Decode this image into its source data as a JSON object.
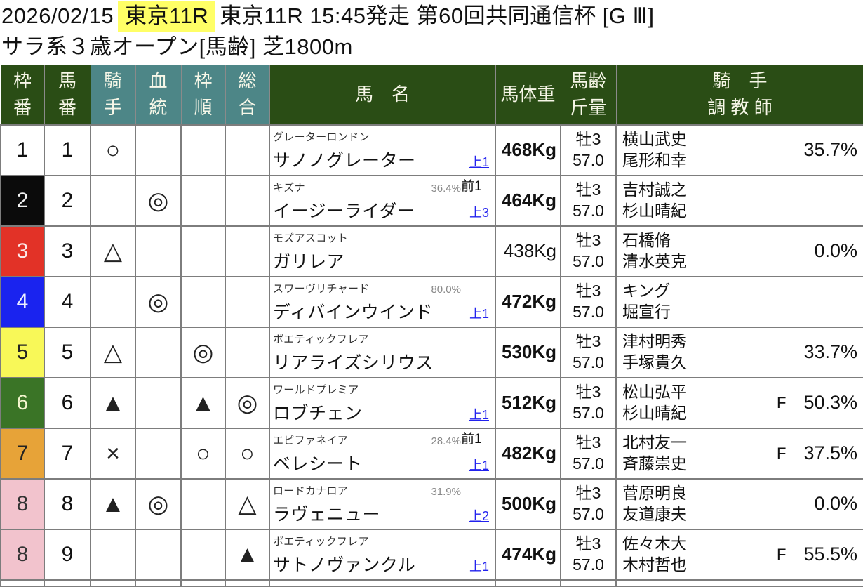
{
  "header": {
    "date": "2026/02/15",
    "track_highlight": "東京11R",
    "race_info": "東京11R 15:45発走 第60回共同通信杯 [G Ⅲ]",
    "conditions": "サラ系３歳オープン[馬齢] 芝1800m",
    "highlight_color": "#ffff66"
  },
  "colors": {
    "header_green": "#2a4d15",
    "header_teal": "#4d8687",
    "link_blue": "#2222ee",
    "border_gray": "#7d7d7d",
    "frame_colors": {
      "1": "#ffffff",
      "2": "#0b0b0b",
      "3": "#e23227",
      "4": "#1a23ef",
      "5": "#f8f858",
      "6": "#3a7426",
      "7": "#e7a338",
      "8": "#f2c3cd"
    }
  },
  "table": {
    "headers": {
      "waku": {
        "l1": "枠",
        "l2": "番"
      },
      "uma": {
        "l1": "馬",
        "l2": "番"
      },
      "kishu": {
        "l1": "騎",
        "l2": "手"
      },
      "ketto": {
        "l1": "血",
        "l2": "統"
      },
      "wakujun": {
        "l1": "枠",
        "l2": "順"
      },
      "sogo": {
        "l1": "総",
        "l2": "合"
      },
      "bamei": "馬　名",
      "bataiju": "馬体重",
      "barei": {
        "l1": "馬齢",
        "l2": "斤量"
      },
      "kishu_chokyoshi": {
        "l1": "騎　手",
        "l2": "調 教 師"
      }
    }
  },
  "rows": [
    {
      "frame": "1",
      "number": "1",
      "marks": {
        "jockey": "○",
        "blood": "",
        "draw": "",
        "overall": ""
      },
      "sire": "グレーターロンドン",
      "top_pct": "",
      "top_label": "",
      "name": "サノノグレーター",
      "agari": "上1",
      "weight": "468Kg",
      "sex_age": "牡3",
      "load": "57.0",
      "jockey": "横山武史",
      "trainer": "尾形和幸",
      "f": "",
      "pct": "35.7%"
    },
    {
      "frame": "2",
      "number": "2",
      "marks": {
        "jockey": "",
        "blood": "◎",
        "draw": "",
        "overall": ""
      },
      "sire": "キズナ",
      "top_pct": "36.4%",
      "top_label": "前1",
      "name": "イージーライダー",
      "agari": "上3",
      "weight": "464Kg",
      "sex_age": "牡3",
      "load": "57.0",
      "jockey": "吉村誠之",
      "trainer": "杉山晴紀",
      "f": "",
      "pct": ""
    },
    {
      "frame": "3",
      "number": "3",
      "marks": {
        "jockey": "△",
        "blood": "",
        "draw": "",
        "overall": ""
      },
      "sire": "モズアスコット",
      "top_pct": "",
      "top_label": "",
      "name": "ガリレア",
      "agari": "",
      "weight": "438Kg",
      "sex_age": "牡3",
      "load": "57.0",
      "jockey": "石橋脩",
      "trainer": "清水英克",
      "f": "",
      "pct": "0.0%"
    },
    {
      "frame": "4",
      "number": "4",
      "marks": {
        "jockey": "",
        "blood": "◎",
        "draw": "",
        "overall": ""
      },
      "sire": "スワーヴリチャード",
      "top_pct": "80.0%",
      "top_label": "",
      "name": "ディバインウインド",
      "agari": "上1",
      "weight": "472Kg",
      "sex_age": "牡3",
      "load": "57.0",
      "jockey": "キング",
      "trainer": "堀宣行",
      "f": "",
      "pct": ""
    },
    {
      "frame": "5",
      "number": "5",
      "marks": {
        "jockey": "△",
        "blood": "",
        "draw": "◎",
        "overall": ""
      },
      "sire": "ポエティックフレア",
      "top_pct": "",
      "top_label": "",
      "name": "リアライズシリウス",
      "agari": "",
      "weight": "530Kg",
      "sex_age": "牡3",
      "load": "57.0",
      "jockey": "津村明秀",
      "trainer": "手塚貴久",
      "f": "",
      "pct": "33.7%"
    },
    {
      "frame": "6",
      "number": "6",
      "marks": {
        "jockey": "▲",
        "blood": "",
        "draw": "▲",
        "overall": "◎"
      },
      "sire": "ワールドプレミア",
      "top_pct": "",
      "top_label": "",
      "name": "ロブチェン",
      "agari": "上1",
      "weight": "512Kg",
      "sex_age": "牡3",
      "load": "57.0",
      "jockey": "松山弘平",
      "trainer": "杉山晴紀",
      "f": "F",
      "pct": "50.3%"
    },
    {
      "frame": "7",
      "number": "7",
      "marks": {
        "jockey": "×",
        "blood": "",
        "draw": "○",
        "overall": "○"
      },
      "sire": "エピファネイア",
      "top_pct": "28.4%",
      "top_label": "前1",
      "name": "ベレシート",
      "agari": "上1",
      "weight": "482Kg",
      "sex_age": "牡3",
      "load": "57.0",
      "jockey": "北村友一",
      "trainer": "斉藤崇史",
      "f": "F",
      "pct": "37.5%"
    },
    {
      "frame": "8",
      "number": "8",
      "marks": {
        "jockey": "▲",
        "blood": "◎",
        "draw": "",
        "overall": "△"
      },
      "sire": "ロードカナロア",
      "top_pct": "31.9%",
      "top_label": "",
      "name": "ラヴェニュー",
      "agari": "上2",
      "weight": "500Kg",
      "sex_age": "牡3",
      "load": "57.0",
      "jockey": "菅原明良",
      "trainer": "友道康夫",
      "f": "",
      "pct": "0.0%"
    },
    {
      "frame": "8",
      "number": "9",
      "marks": {
        "jockey": "",
        "blood": "",
        "draw": "",
        "overall": "▲"
      },
      "sire": "ポエティックフレア",
      "top_pct": "",
      "top_label": "",
      "name": "サトノヴァンクル",
      "agari": "上1",
      "weight": "474Kg",
      "sex_age": "牡3",
      "load": "57.0",
      "jockey": "佐々木大",
      "trainer": "木村哲也",
      "f": "F",
      "pct": "55.5%"
    }
  ]
}
